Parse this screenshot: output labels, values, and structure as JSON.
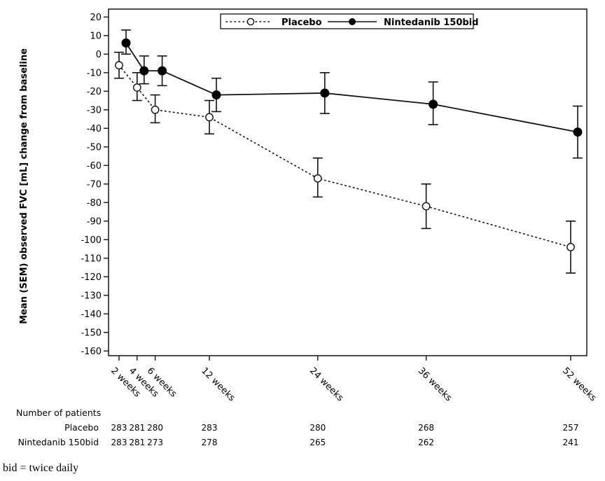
{
  "chart_data": {
    "type": "line",
    "title": "",
    "ylabel": "Mean (SEM) observed FVC [mL] change from baseline",
    "xlabel": "",
    "ylim": [
      -160,
      20
    ],
    "yticks": [
      20,
      10,
      0,
      -10,
      -20,
      -30,
      -40,
      -50,
      -60,
      -70,
      -80,
      -90,
      -100,
      -110,
      -120,
      -130,
      -140,
      -150,
      -160
    ],
    "x": [
      2,
      4,
      6,
      12,
      24,
      36,
      52
    ],
    "xlim": [
      2,
      52
    ],
    "x_tick_labels": [
      "2 weeks",
      "4 weeks",
      "6 weeks",
      "12 weeks",
      "24 weeks",
      "36 weeks",
      "52 weeks"
    ],
    "grid": false,
    "legend_position": "top-center",
    "series": [
      {
        "name": "Placebo",
        "style": "dotted",
        "marker": "open-circle",
        "values": [
          -6,
          -18,
          -30,
          -34,
          -67,
          -82,
          -104
        ],
        "error_lower": [
          -13,
          -25,
          -37,
          -43,
          -77,
          -94,
          -118
        ],
        "error_upper": [
          1,
          -10,
          -22,
          -25,
          -56,
          -70,
          -90
        ]
      },
      {
        "name": "Nintedanib 150bid",
        "style": "solid",
        "marker": "filled-circle",
        "values": [
          6,
          -9,
          -9,
          -22,
          -21,
          -27,
          -42
        ],
        "error_lower": [
          0,
          -16,
          -17,
          -31,
          -32,
          -38,
          -56
        ],
        "error_upper": [
          13,
          -1,
          -1,
          -13,
          -10,
          -15,
          -28
        ]
      }
    ],
    "number_of_patients": {
      "heading": "Number of patients",
      "rows": [
        {
          "label": "Placebo",
          "values": [
            "283",
            "281",
            "280",
            "283",
            "280",
            "268",
            "257"
          ]
        },
        {
          "label": "Nintedanib 150bid",
          "values": [
            "283",
            "281",
            "273",
            "278",
            "265",
            "262",
            "241"
          ]
        }
      ]
    }
  },
  "footnote": "bid = twice daily"
}
